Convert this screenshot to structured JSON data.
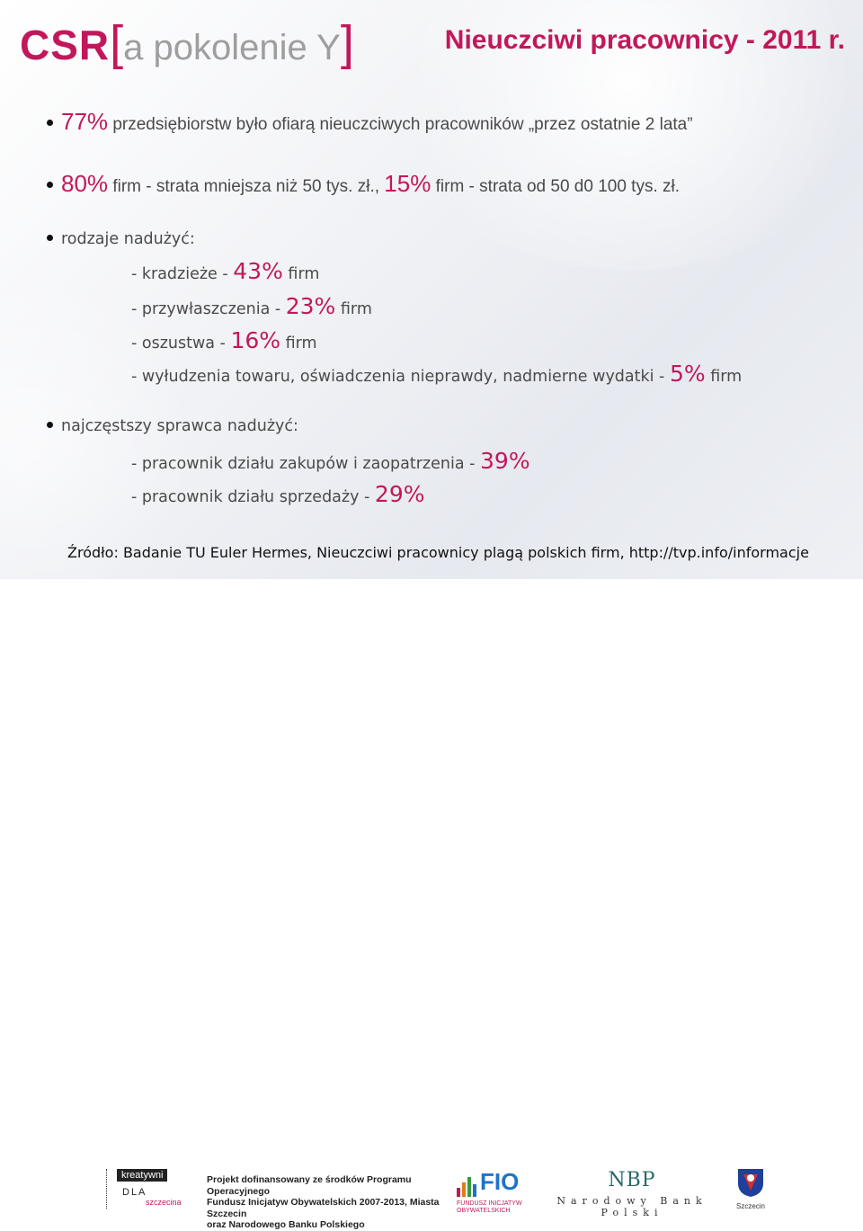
{
  "logo": {
    "csr": "CSR",
    "bracket_open": "[",
    "sub": "a pokolenie Y",
    "bracket_close": "]"
  },
  "title": "Nieuczciwi pracownicy - 2011 r.",
  "bullets": {
    "b1": {
      "pct": "77%",
      "text": "przedsiębiorstw było ofiarą nieuczciwych pracowników „przez ostatnie 2 lata”"
    },
    "b2": {
      "pct1": "80%",
      "text1": "firm - strata mniejsza niż 50 tys. zł.,",
      "pct2": "15%",
      "text2": "firm - strata od 50 d0 100 tys. zł."
    },
    "b3": {
      "label": "rodzaje nadużyć:",
      "items": [
        {
          "prefix": "- kradzieże -",
          "pct": "43%",
          "suffix": "firm"
        },
        {
          "prefix": "- przywłaszczenia -",
          "pct": "23%",
          "suffix": "firm"
        },
        {
          "prefix": "- oszustwa -",
          "pct": "16%",
          "suffix": "firm"
        },
        {
          "prefix": "- wyłudzenia towaru, oświadczenia nieprawdy, nadmierne wydatki -",
          "pct": "5%",
          "suffix": "firm"
        }
      ]
    },
    "b4": {
      "label": "najczęstszy sprawca nadużyć:",
      "items": [
        {
          "prefix": "- pracownik działu zakupów i zaopatrzenia -",
          "pct": "39%"
        },
        {
          "prefix": "- pracownik działu sprzedaży -",
          "pct": "29%"
        }
      ]
    }
  },
  "source": "Źródło: Badanie TU Euler Hermes, Nieuczciwi pracownicy plagą polskich firm, http://tvp.info/informacje",
  "footer": {
    "kreatywni": {
      "k1": "kreatywni",
      "k2": "DLA",
      "k3": "szczecina"
    },
    "funding": [
      "Projekt dofinansowany ze środków Programu Operacyjnego",
      "Fundusz Inicjatyw Obywatelskich 2007-2013, Miasta Szczecin",
      "oraz Narodowego Banku Polskiego"
    ],
    "fio": {
      "word": "FIO",
      "small1": "FUNDUSZ INICJATYW",
      "small2": "OBYWATELSKICH"
    },
    "nbp": {
      "big": "NBP",
      "small": "Narodowy Bank Polski"
    },
    "szczecin": "Szczecin"
  },
  "colors": {
    "accent": "#c2185b",
    "text": "#4a4a4a",
    "fio_blue": "#1e73c8",
    "nbp_teal": "#2a6a6a"
  }
}
